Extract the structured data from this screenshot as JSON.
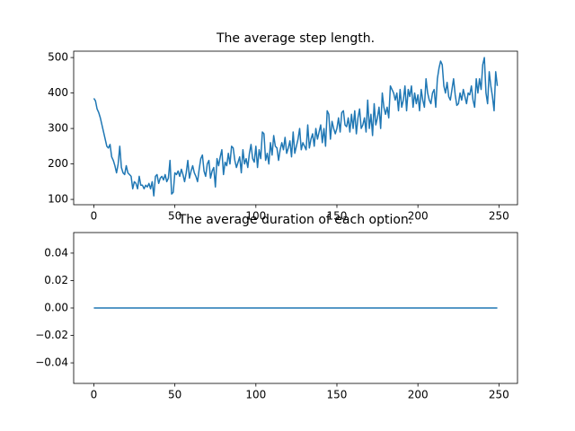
{
  "chart_data": [
    {
      "type": "line",
      "title": "The average step length.",
      "x": [
        0,
        1,
        2,
        3,
        4,
        5,
        6,
        7,
        8,
        9,
        10,
        11,
        12,
        13,
        14,
        15,
        16,
        17,
        18,
        19,
        20,
        21,
        22,
        23,
        24,
        25,
        26,
        27,
        28,
        29,
        30,
        31,
        32,
        33,
        34,
        35,
        36,
        37,
        38,
        39,
        40,
        41,
        42,
        43,
        44,
        45,
        46,
        47,
        48,
        49,
        50,
        51,
        52,
        53,
        54,
        55,
        56,
        57,
        58,
        59,
        60,
        61,
        62,
        63,
        64,
        65,
        66,
        67,
        68,
        69,
        70,
        71,
        72,
        73,
        74,
        75,
        76,
        77,
        78,
        79,
        80,
        81,
        82,
        83,
        84,
        85,
        86,
        87,
        88,
        89,
        90,
        91,
        92,
        93,
        94,
        95,
        96,
        97,
        98,
        99,
        100,
        101,
        102,
        103,
        104,
        105,
        106,
        107,
        108,
        109,
        110,
        111,
        112,
        113,
        114,
        115,
        116,
        117,
        118,
        119,
        120,
        121,
        122,
        123,
        124,
        125,
        126,
        127,
        128,
        129,
        130,
        131,
        132,
        133,
        134,
        135,
        136,
        137,
        138,
        139,
        140,
        141,
        142,
        143,
        144,
        145,
        146,
        147,
        148,
        149,
        150,
        151,
        152,
        153,
        154,
        155,
        156,
        157,
        158,
        159,
        160,
        161,
        162,
        163,
        164,
        165,
        166,
        167,
        168,
        169,
        170,
        171,
        172,
        173,
        174,
        175,
        176,
        177,
        178,
        179,
        180,
        181,
        182,
        183,
        184,
        185,
        186,
        187,
        188,
        189,
        190,
        191,
        192,
        193,
        194,
        195,
        196,
        197,
        198,
        199,
        200,
        201,
        202,
        203,
        204,
        205,
        206,
        207,
        208,
        209,
        210,
        211,
        212,
        213,
        214,
        215,
        216,
        217,
        218,
        219,
        220,
        221,
        222,
        223,
        224,
        225,
        226,
        227,
        228,
        229,
        230,
        231,
        232,
        233,
        234,
        235,
        236,
        237,
        238,
        239,
        240,
        241,
        242,
        243,
        244,
        245,
        246,
        247,
        248,
        249
      ],
      "values": [
        385,
        378,
        355,
        345,
        330,
        310,
        290,
        270,
        250,
        245,
        255,
        220,
        210,
        195,
        175,
        200,
        250,
        190,
        175,
        170,
        195,
        175,
        170,
        165,
        130,
        150,
        145,
        130,
        165,
        140,
        140,
        130,
        140,
        135,
        145,
        130,
        150,
        110,
        165,
        170,
        145,
        160,
        165,
        155,
        170,
        150,
        160,
        210,
        115,
        120,
        175,
        170,
        180,
        165,
        185,
        170,
        150,
        175,
        210,
        160,
        180,
        195,
        175,
        165,
        150,
        185,
        215,
        225,
        180,
        165,
        200,
        210,
        160,
        180,
        190,
        135,
        215,
        195,
        220,
        240,
        170,
        205,
        195,
        230,
        200,
        250,
        245,
        210,
        190,
        205,
        220,
        175,
        240,
        200,
        215,
        190,
        230,
        255,
        215,
        205,
        250,
        190,
        240,
        215,
        290,
        285,
        210,
        230,
        200,
        260,
        225,
        280,
        250,
        245,
        210,
        240,
        260,
        240,
        275,
        230,
        245,
        265,
        220,
        290,
        230,
        250,
        270,
        300,
        240,
        260,
        250,
        240,
        310,
        245,
        270,
        285,
        250,
        300,
        270,
        290,
        310,
        260,
        300,
        250,
        350,
        340,
        270,
        320,
        300,
        285,
        300,
        330,
        290,
        345,
        350,
        310,
        305,
        330,
        290,
        340,
        300,
        350,
        285,
        330,
        355,
        300,
        310,
        330,
        290,
        380,
        300,
        340,
        280,
        370,
        310,
        330,
        360,
        300,
        400,
        360,
        340,
        360,
        330,
        420,
        410,
        400,
        380,
        400,
        350,
        410,
        360,
        380,
        420,
        350,
        410,
        390,
        420,
        360,
        400,
        370,
        395,
        350,
        410,
        380,
        360,
        440,
        400,
        380,
        370,
        400,
        410,
        360,
        440,
        470,
        490,
        480,
        420,
        400,
        430,
        390,
        380,
        410,
        440,
        395,
        365,
        370,
        400,
        380,
        410,
        390,
        370,
        400,
        395,
        420,
        380,
        360,
        440,
        400,
        440,
        410,
        480,
        500,
        400,
        370,
        460,
        420,
        390,
        350,
        460,
        420
      ],
      "color": "#1f77b4",
      "xlim": [
        -12.45,
        261.45
      ],
      "ylim": [
        85,
        518
      ],
      "xticks": [
        0,
        50,
        100,
        150,
        200,
        250
      ],
      "yticks": [
        100,
        200,
        300,
        400,
        500
      ]
    },
    {
      "type": "line",
      "title": "The average duration of each option.",
      "x": [
        0,
        1,
        2,
        3,
        4,
        5,
        6,
        7,
        8,
        9,
        10,
        11,
        12,
        13,
        14,
        15,
        16,
        17,
        18,
        19,
        20,
        21,
        22,
        23,
        24,
        25,
        26,
        27,
        28,
        29,
        30,
        31,
        32,
        33,
        34,
        35,
        36,
        37,
        38,
        39,
        40,
        41,
        42,
        43,
        44,
        45,
        46,
        47,
        48,
        49,
        50,
        51,
        52,
        53,
        54,
        55,
        56,
        57,
        58,
        59,
        60,
        61,
        62,
        63,
        64,
        65,
        66,
        67,
        68,
        69,
        70,
        71,
        72,
        73,
        74,
        75,
        76,
        77,
        78,
        79,
        80,
        81,
        82,
        83,
        84,
        85,
        86,
        87,
        88,
        89,
        90,
        91,
        92,
        93,
        94,
        95,
        96,
        97,
        98,
        99,
        100,
        101,
        102,
        103,
        104,
        105,
        106,
        107,
        108,
        109,
        110,
        111,
        112,
        113,
        114,
        115,
        116,
        117,
        118,
        119,
        120,
        121,
        122,
        123,
        124,
        125,
        126,
        127,
        128,
        129,
        130,
        131,
        132,
        133,
        134,
        135,
        136,
        137,
        138,
        139,
        140,
        141,
        142,
        143,
        144,
        145,
        146,
        147,
        148,
        149,
        150,
        151,
        152,
        153,
        154,
        155,
        156,
        157,
        158,
        159,
        160,
        161,
        162,
        163,
        164,
        165,
        166,
        167,
        168,
        169,
        170,
        171,
        172,
        173,
        174,
        175,
        176,
        177,
        178,
        179,
        180,
        181,
        182,
        183,
        184,
        185,
        186,
        187,
        188,
        189,
        190,
        191,
        192,
        193,
        194,
        195,
        196,
        197,
        198,
        199,
        200,
        201,
        202,
        203,
        204,
        205,
        206,
        207,
        208,
        209,
        210,
        211,
        212,
        213,
        214,
        215,
        216,
        217,
        218,
        219,
        220,
        221,
        222,
        223,
        224,
        225,
        226,
        227,
        228,
        229,
        230,
        231,
        232,
        233,
        234,
        235,
        236,
        237,
        238,
        239,
        240,
        241,
        242,
        243,
        244,
        245,
        246,
        247,
        248,
        249
      ],
      "values": [
        0,
        0,
        0,
        0,
        0,
        0,
        0,
        0,
        0,
        0,
        0,
        0,
        0,
        0,
        0,
        0,
        0,
        0,
        0,
        0,
        0,
        0,
        0,
        0,
        0,
        0,
        0,
        0,
        0,
        0,
        0,
        0,
        0,
        0,
        0,
        0,
        0,
        0,
        0,
        0,
        0,
        0,
        0,
        0,
        0,
        0,
        0,
        0,
        0,
        0,
        0,
        0,
        0,
        0,
        0,
        0,
        0,
        0,
        0,
        0,
        0,
        0,
        0,
        0,
        0,
        0,
        0,
        0,
        0,
        0,
        0,
        0,
        0,
        0,
        0,
        0,
        0,
        0,
        0,
        0,
        0,
        0,
        0,
        0,
        0,
        0,
        0,
        0,
        0,
        0,
        0,
        0,
        0,
        0,
        0,
        0,
        0,
        0,
        0,
        0,
        0,
        0,
        0,
        0,
        0,
        0,
        0,
        0,
        0,
        0,
        0,
        0,
        0,
        0,
        0,
        0,
        0,
        0,
        0,
        0,
        0,
        0,
        0,
        0,
        0,
        0,
        0,
        0,
        0,
        0,
        0,
        0,
        0,
        0,
        0,
        0,
        0,
        0,
        0,
        0,
        0,
        0,
        0,
        0,
        0,
        0,
        0,
        0,
        0,
        0,
        0,
        0,
        0,
        0,
        0,
        0,
        0,
        0,
        0,
        0,
        0,
        0,
        0,
        0,
        0,
        0,
        0,
        0,
        0,
        0,
        0,
        0,
        0,
        0,
        0,
        0,
        0,
        0,
        0,
        0,
        0,
        0,
        0,
        0,
        0,
        0,
        0,
        0,
        0,
        0,
        0,
        0,
        0,
        0,
        0,
        0,
        0,
        0,
        0,
        0,
        0,
        0,
        0,
        0,
        0,
        0,
        0,
        0,
        0,
        0,
        0,
        0,
        0,
        0,
        0,
        0,
        0,
        0,
        0,
        0,
        0,
        0,
        0,
        0,
        0,
        0,
        0,
        0,
        0,
        0,
        0,
        0,
        0,
        0,
        0,
        0,
        0,
        0,
        0,
        0,
        0,
        0,
        0,
        0,
        0,
        0,
        0,
        0,
        0,
        0
      ],
      "color": "#1f77b4",
      "xlim": [
        -12.45,
        261.45
      ],
      "ylim": [
        -0.055,
        0.055
      ],
      "xticks": [
        0,
        50,
        100,
        150,
        200,
        250
      ],
      "yticks": [
        {
          "value": -0.04,
          "label": "−0.04"
        },
        {
          "value": -0.02,
          "label": "−0.02"
        },
        {
          "value": 0,
          "label": "0.00"
        },
        0.02,
        0.04
      ]
    }
  ]
}
